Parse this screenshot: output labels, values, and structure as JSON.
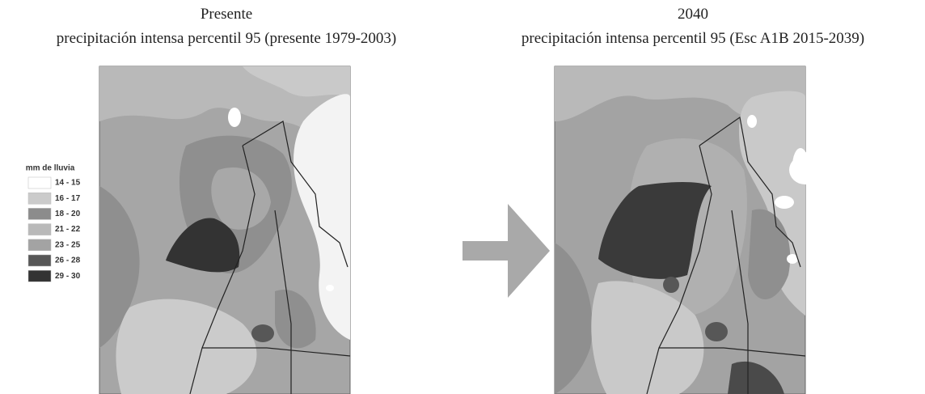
{
  "left_panel": {
    "title": "Presente",
    "subtitle": "precipitación intensa percentil 95 (presente 1979-2003)"
  },
  "right_panel": {
    "title": "2040",
    "subtitle": "precipitación intensa percentil 95 (Esc A1B 2015-2039)"
  },
  "legend": {
    "title": "mm de lluvia",
    "items": [
      {
        "label": "14 - 15",
        "color": "#ffffff"
      },
      {
        "label": "16 - 17",
        "color": "#cbcbcb"
      },
      {
        "label": "18 - 20",
        "color": "#8c8c8c"
      },
      {
        "label": "21 - 22",
        "color": "#b9b9b9"
      },
      {
        "label": "23 - 25",
        "color": "#a3a3a3"
      },
      {
        "label": "26 - 28",
        "color": "#575757"
      },
      {
        "label": "29 - 30",
        "color": "#333333"
      }
    ]
  }
}
